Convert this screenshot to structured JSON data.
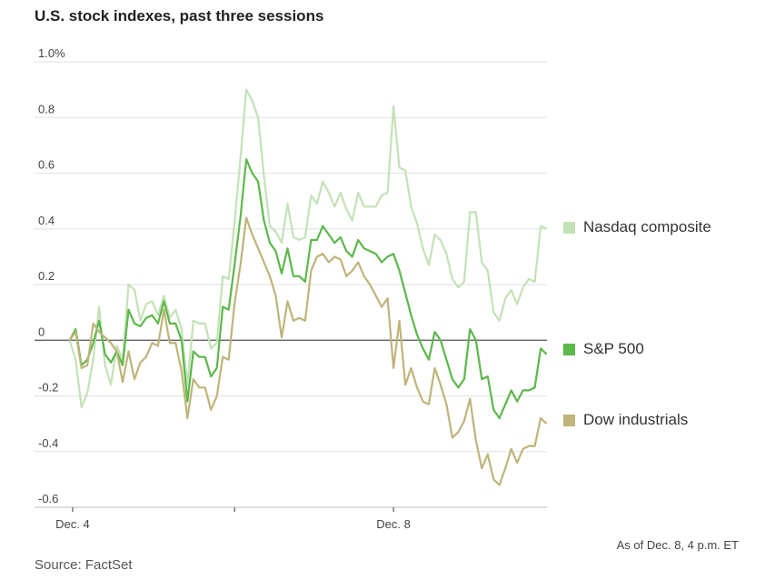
{
  "title": "U.S. stock indexes, past three sessions",
  "source": "Source: FactSet",
  "timestamp_note": "As of Dec. 8, 4 p.m. ET",
  "chart_data": {
    "type": "line",
    "title": "U.S. stock indexes, past three sessions",
    "xlabel": "",
    "ylabel": "",
    "ylim": [
      -0.6,
      1.0
    ],
    "y_ticks": [
      {
        "value": 1.0,
        "label": "1.0%"
      },
      {
        "value": 0.8,
        "label": "0.8"
      },
      {
        "value": 0.6,
        "label": "0.6"
      },
      {
        "value": 0.4,
        "label": "0.4"
      },
      {
        "value": 0.2,
        "label": "0.2"
      },
      {
        "value": 0,
        "label": "0"
      },
      {
        "value": -0.2,
        "label": "-0.2"
      },
      {
        "value": -0.4,
        "label": "-0.4"
      },
      {
        "value": -0.6,
        "label": "-0.6"
      }
    ],
    "x_ticks": [
      {
        "index": 0.5,
        "label": "Dec. 4"
      },
      {
        "index": 28,
        "label": ""
      },
      {
        "index": 55,
        "label": "Dec. 8"
      }
    ],
    "grid": true,
    "legend_position": "right",
    "series": [
      {
        "name": "Nasdaq composite",
        "color": "#c3e2b6",
        "values": [
          0.0,
          -0.07,
          -0.24,
          -0.19,
          -0.07,
          0.12,
          -0.09,
          -0.16,
          -0.02,
          -0.07,
          0.2,
          0.18,
          0.07,
          0.13,
          0.14,
          0.09,
          0.16,
          0.08,
          0.11,
          0.04,
          -0.16,
          0.07,
          0.06,
          0.06,
          -0.03,
          -0.01,
          0.23,
          0.22,
          0.42,
          0.65,
          0.9,
          0.86,
          0.8,
          0.59,
          0.41,
          0.39,
          0.35,
          0.49,
          0.37,
          0.36,
          0.37,
          0.52,
          0.49,
          0.57,
          0.53,
          0.48,
          0.53,
          0.47,
          0.43,
          0.53,
          0.48,
          0.48,
          0.48,
          0.52,
          0.53,
          0.84,
          0.62,
          0.61,
          0.48,
          0.42,
          0.33,
          0.27,
          0.38,
          0.36,
          0.31,
          0.22,
          0.19,
          0.21,
          0.46,
          0.46,
          0.28,
          0.25,
          0.1,
          0.07,
          0.15,
          0.18,
          0.13,
          0.19,
          0.22,
          0.21,
          0.41,
          0.4
        ]
      },
      {
        "name": "S&P 500",
        "color": "#5cb84a",
        "values": [
          0.0,
          0.04,
          -0.09,
          -0.07,
          -0.01,
          0.07,
          -0.05,
          -0.08,
          -0.04,
          -0.09,
          0.11,
          0.06,
          0.05,
          0.08,
          0.09,
          0.06,
          0.14,
          0.06,
          0.06,
          0.0,
          -0.22,
          -0.04,
          -0.06,
          -0.06,
          -0.13,
          -0.1,
          0.12,
          0.11,
          0.27,
          0.44,
          0.65,
          0.6,
          0.57,
          0.43,
          0.35,
          0.32,
          0.24,
          0.33,
          0.23,
          0.23,
          0.21,
          0.36,
          0.36,
          0.41,
          0.38,
          0.35,
          0.37,
          0.32,
          0.3,
          0.36,
          0.33,
          0.32,
          0.31,
          0.28,
          0.3,
          0.31,
          0.25,
          0.17,
          0.09,
          0.02,
          -0.03,
          -0.07,
          0.03,
          0.0,
          -0.07,
          -0.14,
          -0.17,
          -0.14,
          0.04,
          0.0,
          -0.14,
          -0.13,
          -0.25,
          -0.28,
          -0.23,
          -0.18,
          -0.22,
          -0.18,
          -0.18,
          -0.17,
          -0.03,
          -0.05
        ]
      },
      {
        "name": "Dow industrials",
        "color": "#bfb47a",
        "values": [
          0.0,
          0.03,
          -0.1,
          -0.09,
          0.06,
          0.03,
          0.01,
          -0.01,
          -0.04,
          -0.15,
          -0.04,
          -0.14,
          -0.08,
          -0.06,
          -0.01,
          -0.02,
          0.11,
          -0.01,
          -0.01,
          -0.11,
          -0.28,
          -0.14,
          -0.17,
          -0.17,
          -0.25,
          -0.2,
          -0.06,
          -0.07,
          0.13,
          0.27,
          0.44,
          0.38,
          0.33,
          0.28,
          0.23,
          0.16,
          0.01,
          0.14,
          0.07,
          0.08,
          0.07,
          0.25,
          0.3,
          0.31,
          0.28,
          0.3,
          0.29,
          0.23,
          0.25,
          0.28,
          0.23,
          0.2,
          0.16,
          0.12,
          0.15,
          -0.1,
          0.07,
          -0.16,
          -0.1,
          -0.17,
          -0.22,
          -0.23,
          -0.1,
          -0.16,
          -0.23,
          -0.35,
          -0.33,
          -0.29,
          -0.21,
          -0.36,
          -0.46,
          -0.41,
          -0.5,
          -0.52,
          -0.46,
          -0.39,
          -0.44,
          -0.39,
          -0.38,
          -0.38,
          -0.28,
          -0.3
        ]
      }
    ]
  }
}
